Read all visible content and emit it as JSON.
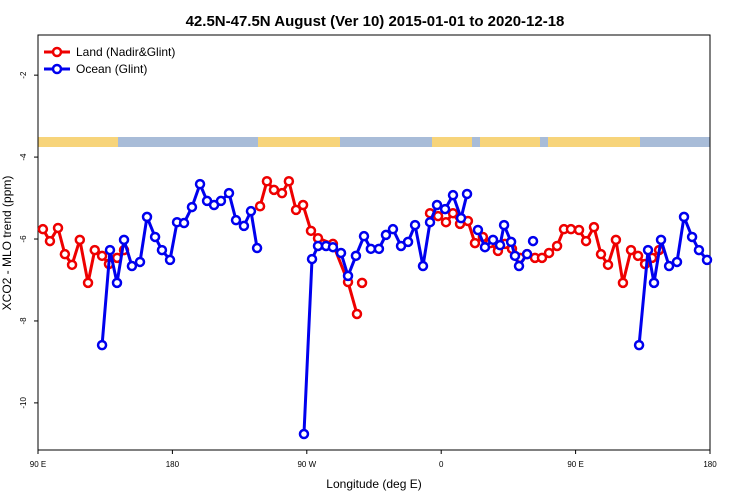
{
  "chart_data": {
    "type": "line",
    "title": "42.5N-47.5N August (Ver 10)   2015-01-01 to 2020-12-18",
    "x_label": "Longitude (deg E)",
    "y_label": "XCO2 - MLO trend (ppm)",
    "xlim": [
      90,
      540
    ],
    "xticks": [
      {
        "value": 90,
        "label": "90 E"
      },
      {
        "value": 180,
        "label": "180"
      },
      {
        "value": 270,
        "label": "90 W"
      },
      {
        "value": 360,
        "label": "0"
      },
      {
        "value": 450,
        "label": "90 E"
      },
      {
        "value": 540,
        "label": "180"
      }
    ],
    "ylim": [
      -11.15,
      -1.02
    ],
    "yticks": [
      -2,
      -4,
      -6,
      -8,
      -10
    ],
    "legend": "top-left",
    "series": [
      {
        "name": "Land (Nadir&Glint)",
        "color": "#ee0000",
        "x": [
          93.3,
          98,
          103.4,
          108,
          112.8,
          118,
          123.5,
          128,
          132.9,
          137.5,
          143,
          147.6,
          null,
          238.7,
          243.3,
          248,
          253.4,
          258,
          262.8,
          267.5,
          272.8,
          277.5,
          287.5,
          297.6,
          303.6,
          null,
          307,
          null,
          352.5,
          357.9,
          363.2,
          367.9,
          372.6,
          377.9,
          382.6,
          387.9,
          392.7,
          398,
          402.7,
          407.4,
          412.8,
          417.5,
          422.8,
          427.5,
          432.2,
          437.6,
          442.2,
          446.9,
          452.3,
          457,
          462.3,
          467,
          471.7,
          477,
          481.7,
          487.1,
          491.8,
          496.5,
          501.2,
          505.9
        ],
        "values": [
          -5.76,
          -6.05,
          -5.73,
          -6.37,
          -6.63,
          -6.02,
          -7.07,
          -6.27,
          -6.41,
          -6.61,
          -6.46,
          -6.27,
          null,
          -5.2,
          -4.59,
          -4.8,
          -4.88,
          -4.59,
          -5.29,
          -5.17,
          -5.8,
          -5.98,
          -6.12,
          -7.05,
          -7.83,
          null,
          -7.07,
          null,
          -5.37,
          -5.44,
          -5.59,
          -5.37,
          -5.63,
          -5.56,
          -6.1,
          -5.95,
          -6.1,
          -6.29,
          -6.12,
          -6.24,
          -6.46,
          -6.37,
          -6.46,
          -6.46,
          -6.34,
          -6.17,
          -5.76,
          -5.76,
          -5.78,
          -6.05,
          -5.71,
          -6.37,
          -6.63,
          -6.02,
          -7.07,
          -6.27,
          -6.41,
          -6.61,
          -6.46,
          -6.27
        ]
      },
      {
        "name": "Ocean (Glint)",
        "color": "#0000ee",
        "x": [
          132.9,
          138.2,
          142.9,
          147.6,
          152.9,
          158.3,
          163,
          168.4,
          173,
          178.4,
          183.1,
          187.8,
          193.1,
          198.5,
          203.2,
          207.9,
          212.5,
          217.9,
          222.6,
          227.9,
          232.6,
          236.7,
          null,
          268.1,
          273.5,
          277.5,
          282.9,
          287.5,
          292.9,
          297.6,
          302.9,
          308.3,
          312.9,
          318.3,
          323,
          327.7,
          333.1,
          337.8,
          342.5,
          347.8,
          352.5,
          357.2,
          362.6,
          367.9,
          373.3,
          377.3,
          null,
          384.6,
          389.3,
          394.7,
          399.4,
          402.1,
          406.8,
          409.4,
          412.1,
          417.5,
          null,
          421.5,
          null,
          492.5,
          498.5,
          502.5,
          507.2,
          512.6,
          517.9,
          522.6,
          528,
          532.6,
          538
        ],
        "values": [
          -8.59,
          -6.27,
          -7.07,
          -6.02,
          -6.66,
          -6.56,
          -5.46,
          -5.95,
          -6.27,
          -6.51,
          -5.59,
          -5.61,
          -5.22,
          -4.66,
          -5.07,
          -5.17,
          -5.07,
          -4.88,
          -5.54,
          -5.68,
          -5.32,
          -6.22,
          null,
          -10.76,
          -6.49,
          -6.17,
          -6.17,
          -6.2,
          -6.34,
          -6.9,
          -6.41,
          -5.93,
          -6.24,
          -6.24,
          -5.9,
          -5.76,
          -6.17,
          -6.07,
          -5.66,
          -6.66,
          -5.59,
          -5.17,
          -5.27,
          -4.93,
          -5.49,
          -4.9,
          null,
          -5.78,
          -6.2,
          -6.02,
          -6.15,
          -5.66,
          -6.07,
          -6.41,
          -6.66,
          -6.37,
          null,
          -6.05,
          null,
          -8.59,
          -6.27,
          -7.07,
          -6.02,
          -6.66,
          -6.56,
          -5.46,
          -5.95,
          -6.27,
          -6.51
        ]
      }
    ]
  }
}
